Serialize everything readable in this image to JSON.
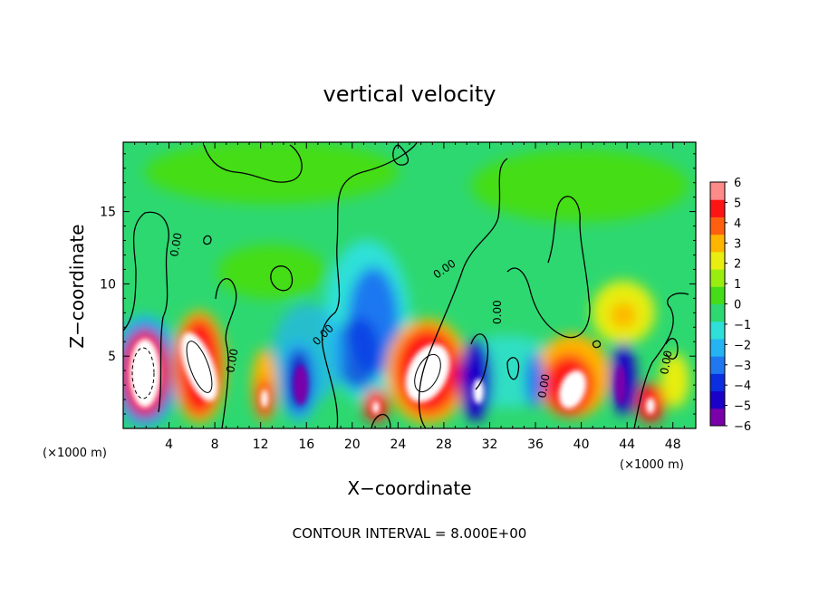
{
  "chart_data": {
    "type": "heatmap",
    "title": "vertical velocity",
    "xlabel": "X−coordinate",
    "ylabel": "Z−coordinate",
    "x_unit_left": "(×1000 m)",
    "x_unit_right": "(×1000 m)",
    "footer": "CONTOUR INTERVAL = 8.000E+00",
    "xlim": [
      0,
      50
    ],
    "ylim": [
      0,
      19.8
    ],
    "xticks": [
      "4",
      "8",
      "12",
      "16",
      "20",
      "24",
      "28",
      "32",
      "36",
      "40",
      "44",
      "48"
    ],
    "xtick_values": [
      4,
      8,
      12,
      16,
      20,
      24,
      28,
      32,
      36,
      40,
      44,
      48
    ],
    "yticks": [
      "5",
      "10",
      "15"
    ],
    "ytick_values": [
      5,
      10,
      15
    ],
    "colorbar": {
      "ticks": [
        "6",
        "5",
        "4",
        "3",
        "2",
        "1",
        "0",
        "−1",
        "−2",
        "−3",
        "−4",
        "−5",
        "−6"
      ],
      "range": [
        -6,
        6
      ],
      "colors": [
        "#7a00aa",
        "#1a00c8",
        "#0a2ee0",
        "#1f78f0",
        "#24b4f4",
        "#2ee0d8",
        "#2ed870",
        "#44dd18",
        "#99ee10",
        "#e8ee10",
        "#ffb400",
        "#ff6010",
        "#ff1414",
        "#ff8a8a"
      ]
    },
    "contour_labels": [
      "0.00",
      "0.00",
      "0.00",
      "0.00",
      "0.00",
      "0.00",
      "0.00",
      "0.00"
    ],
    "features": [
      {
        "x": 1.8,
        "z": 4.2,
        "value": 12
      },
      {
        "x": 5.8,
        "z": 4.8,
        "value": 10
      },
      {
        "x": 26.8,
        "z": 3.7,
        "value": 9
      },
      {
        "x": 39,
        "z": 3.2,
        "value": 8
      },
      {
        "x": 12.3,
        "z": 2.0,
        "value": 6
      },
      {
        "x": 22.0,
        "z": 1.5,
        "value": 6
      },
      {
        "x": 46,
        "z": 1.5,
        "value": 6
      },
      {
        "x": 30.3,
        "z": 2.8,
        "value": 6
      },
      {
        "x": 16.0,
        "z": 2.8,
        "value": -7
      },
      {
        "x": 21.8,
        "z": 8.0,
        "value": -4
      },
      {
        "x": 43.5,
        "z": 3.5,
        "value": -6
      },
      {
        "x": 34.5,
        "z": 3.8,
        "value": -4
      }
    ]
  }
}
